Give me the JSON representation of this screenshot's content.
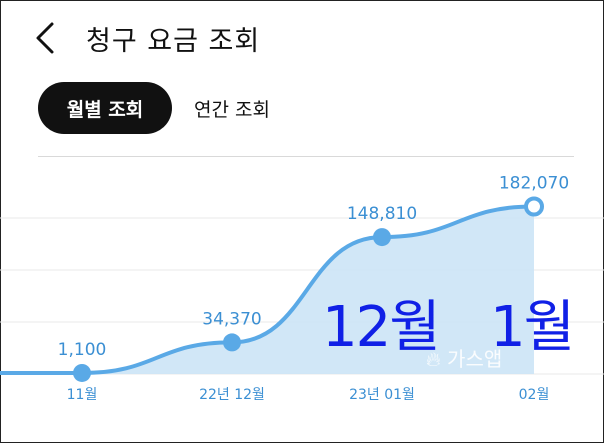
{
  "header": {
    "title": "청구 요금 조회",
    "back_icon": "chevron-left-icon"
  },
  "tabs": {
    "monthly": "월별 조회",
    "yearly": "연간 조회"
  },
  "overlay": {
    "left": "12월",
    "right": "1월"
  },
  "watermark": {
    "icon": "flame-icon",
    "text": "가스앱"
  },
  "colors": {
    "line": "#5aa9e6",
    "fill": "#c9e3f6",
    "value_text": "#3b8fd3",
    "overlay": "#1020e6"
  },
  "chart_data": {
    "type": "area",
    "categories": [
      "11월",
      "22년 12월",
      "23년 01월",
      "02월"
    ],
    "values": [
      1100,
      34370,
      148810,
      182070
    ],
    "value_labels": [
      "1,100",
      "34,370",
      "148,810",
      "182,070"
    ],
    "ylim": [
      0,
      200000
    ],
    "grid": true,
    "highlight_last": true
  }
}
